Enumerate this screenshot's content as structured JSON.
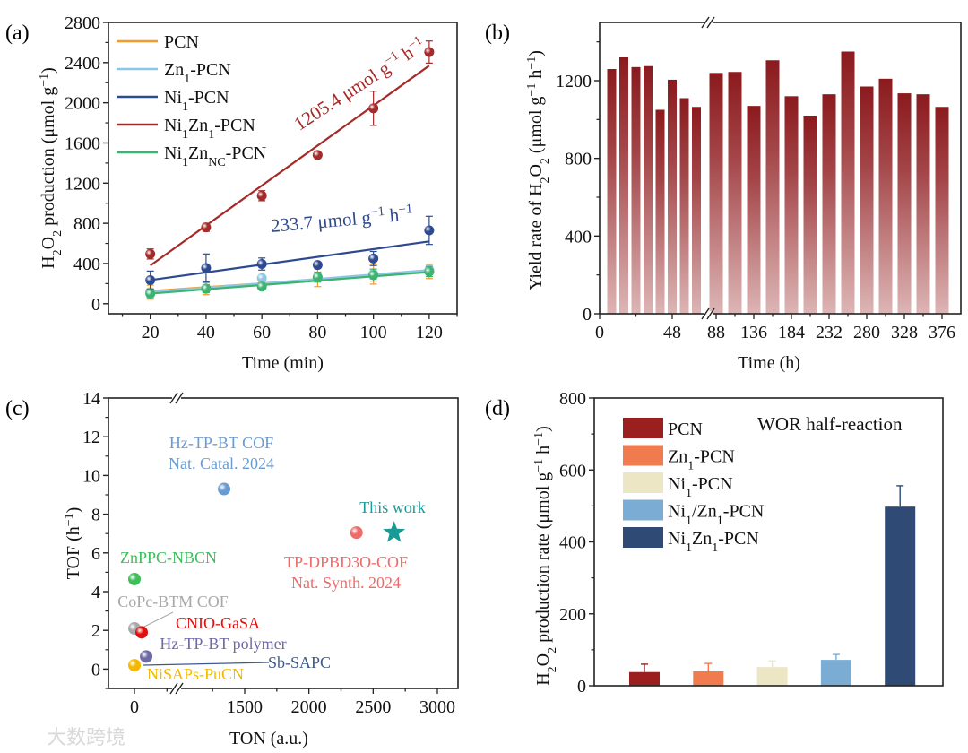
{
  "panel_labels": [
    "(a)",
    "(b)",
    "(c)",
    "(d)"
  ],
  "watermark": "大数跨境",
  "chart_data": [
    {
      "id": "a",
      "type": "scatter",
      "xlabel": "Time (min)",
      "ylabel": "H_{2}O_{2} production (μmol g^{−1})",
      "xlim": [
        5,
        130
      ],
      "ylim": [
        -100,
        2800
      ],
      "xticks": [
        20,
        40,
        60,
        80,
        100,
        120
      ],
      "yticks": [
        0,
        400,
        800,
        1200,
        1600,
        2000,
        2400,
        2800
      ],
      "legend_position": "top-left",
      "x": [
        20,
        40,
        60,
        80,
        100,
        120
      ],
      "series": [
        {
          "name": "PCN",
          "color": "#F39C2B",
          "values": [
            115,
            150,
            180,
            260,
            295,
            320
          ],
          "errors": [
            70,
            60,
            40,
            90,
            100,
            70
          ],
          "fit": [
            125,
            320
          ]
        },
        {
          "name": "Zn_{1}-PCN",
          "color": "#8EC7E6",
          "values": [
            110,
            150,
            255,
            260,
            295,
            335
          ],
          "errors": [
            40,
            40,
            20,
            40,
            50,
            40
          ],
          "fit": [
            115,
            335
          ]
        },
        {
          "name": "Ni_{1}-PCN",
          "color": "#2E4A8F",
          "values": [
            235,
            355,
            395,
            385,
            450,
            730
          ],
          "errors": [
            90,
            140,
            60,
            20,
            70,
            140
          ],
          "fit": [
            235,
            620
          ]
        },
        {
          "name": "Ni_{1}Zn_{1}-PCN",
          "color": "#A52A2A",
          "values": [
            495,
            760,
            1075,
            1480,
            1945,
            2505
          ],
          "errors": [
            50,
            40,
            50,
            10,
            170,
            110
          ],
          "fit": [
            380,
            2370
          ]
        },
        {
          "name": "Ni_{1}Zn_{NC}-PCN",
          "color": "#3CB371",
          "values": [
            100,
            150,
            170,
            265,
            285,
            320
          ],
          "errors": [
            40,
            40,
            30,
            50,
            60,
            50
          ],
          "fit": [
            100,
            315
          ]
        }
      ],
      "annotations": [
        {
          "text": "1205.4 μmol g^{−1} h^{−1}",
          "color": "#A52A2A"
        },
        {
          "text": "233.7 μmol g^{−1} h^{−1}",
          "color": "#2E4A8F"
        }
      ]
    },
    {
      "id": "b",
      "type": "bar",
      "xlabel": "Time (h)",
      "ylabel": "Yield rate of H_{2}O_{2} (μmol g^{−1} h^{−1})",
      "ylim": [
        0,
        1500
      ],
      "yticks": [
        0,
        400,
        800,
        1200
      ],
      "xticks": [
        0,
        48,
        88,
        136,
        184,
        232,
        280,
        328,
        376
      ],
      "x_axis_break": [
        72,
        84
      ],
      "color_top": "#8B1A1D",
      "color_bottom": "#DDB5B5",
      "x": [
        8,
        16,
        24,
        32,
        40,
        48,
        56,
        64,
        88,
        112,
        136,
        160,
        184,
        208,
        232,
        256,
        280,
        304,
        328,
        352,
        376
      ],
      "values": [
        1260,
        1320,
        1270,
        1275,
        1050,
        1205,
        1110,
        1065,
        1240,
        1245,
        1070,
        1305,
        1120,
        1020,
        1130,
        1350,
        1170,
        1210,
        1135,
        1130,
        1065
      ]
    },
    {
      "id": "c",
      "type": "scatter",
      "xlabel": "TON (a.u.)",
      "ylabel": "TOF (h^{−1})",
      "ylim": [
        -1,
        14
      ],
      "yticks": [
        0,
        2,
        4,
        6,
        8,
        10,
        12,
        14
      ],
      "xticks": [
        0,
        1500,
        2000,
        2500,
        3000
      ],
      "x_axis_break": [
        310,
        985
      ],
      "points": [
        {
          "label": "Hz-TP-BT COF",
          "label2": "Nat. Catal. 2024",
          "x": 1340,
          "y": 9.3,
          "color": "#6A9BD1",
          "marker": "sphere"
        },
        {
          "label": "TP-DPBD3O-COF",
          "label2": "Nat. Synth. 2024",
          "x": 2370,
          "y": 7.05,
          "color": "#F06A6A",
          "marker": "sphere"
        },
        {
          "label": "This work",
          "x": 2663,
          "y": 7.05,
          "color": "#1A9A94",
          "marker": "star"
        },
        {
          "label": "ZnPPC-NBCN",
          "x": 0,
          "y": 4.65,
          "color": "#3DBE5A",
          "marker": "sphere"
        },
        {
          "label": "CoPc-BTM COF",
          "x": 0,
          "y": 2.1,
          "color": "#A8A8A8",
          "marker": "sphere"
        },
        {
          "label": "CNIO-GaSA",
          "x": 55,
          "y": 1.9,
          "color": "#E01010",
          "marker": "sphere"
        },
        {
          "label": "Hz-TP-BT polymer",
          "x": 90,
          "y": 0.65,
          "color": "#6E6AA6",
          "marker": "sphere"
        },
        {
          "label": "Sb-SAPC",
          "x": 20,
          "y": 0.3,
          "color": "#3D5A8C",
          "marker": "sphere"
        },
        {
          "label": "NiSAPs-PuCN",
          "x": 0,
          "y": 0.2,
          "color": "#F5B800",
          "marker": "sphere"
        }
      ]
    },
    {
      "id": "d",
      "type": "bar",
      "title": "WOR half-reaction",
      "xlabel": "",
      "ylabel": "H_{2}O_{2} production rate (μmol g^{−1} h^{−1})",
      "ylim": [
        0,
        800
      ],
      "yticks": [
        0,
        200,
        400,
        600,
        800
      ],
      "legend_position": "top-left",
      "categories": [
        "PCN",
        "Zn_{1}-PCN",
        "Ni_{1}-PCN",
        "Ni_{1}/Zn_{1}-PCN",
        "Ni_{1}Zn_{1}-PCN"
      ],
      "values": [
        38,
        40,
        52,
        72,
        498
      ],
      "errors": [
        22,
        22,
        17,
        15,
        58
      ],
      "colors": [
        "#9B1F1F",
        "#F07B4F",
        "#ECE6C4",
        "#7BACD4",
        "#2E4A75"
      ]
    }
  ]
}
